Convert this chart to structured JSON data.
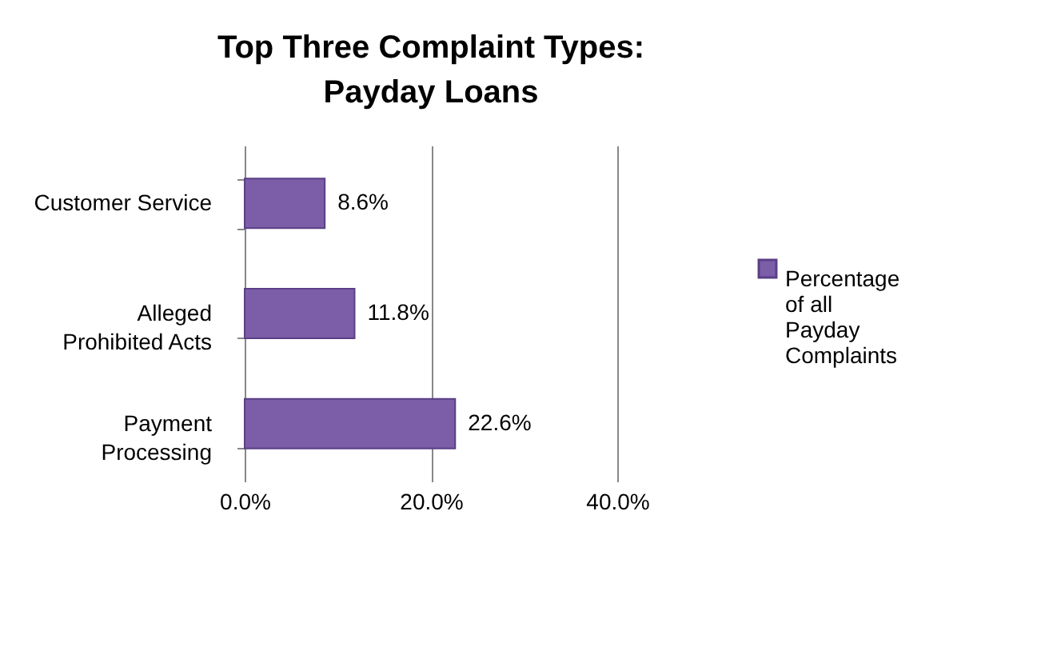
{
  "chart_data": {
    "type": "bar",
    "orientation": "horizontal",
    "title": "Top Three Complaint Types: Payday Loans",
    "categories": [
      "Customer Service",
      "Alleged Prohibited Acts",
      "Payment Processing"
    ],
    "series": [
      {
        "name": "Percentage of all Payday Complaints",
        "color": "#7b5ea7",
        "values": [
          8.6,
          11.8,
          22.6
        ],
        "value_labels": [
          "8.6%",
          "11.8%",
          "22.6%"
        ]
      }
    ],
    "xlim": [
      0,
      40
    ],
    "xticks": [
      {
        "value": 0,
        "label": "0.0%"
      },
      {
        "value": 20,
        "label": "20.0%"
      },
      {
        "value": 40,
        "label": "40.0%"
      }
    ],
    "grid": "x",
    "legend": "right"
  }
}
